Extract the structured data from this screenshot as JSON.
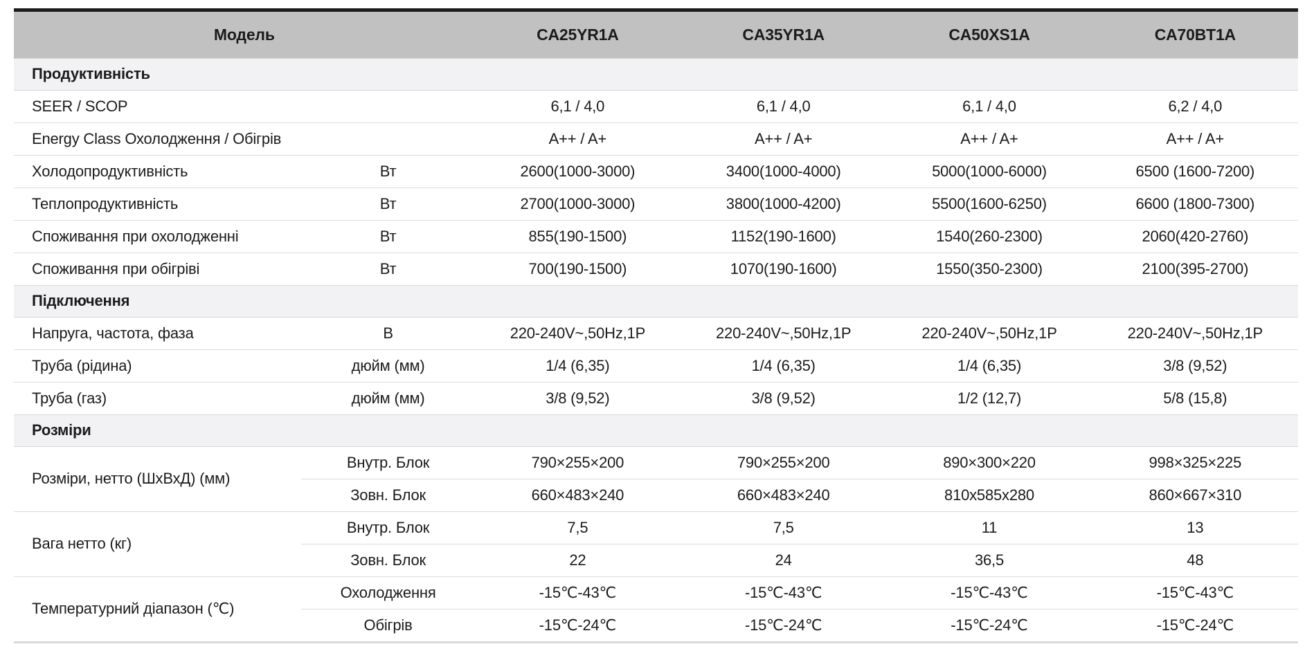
{
  "table": {
    "header": {
      "model_label": "Модель",
      "models": [
        "CA25YR1A",
        "CA35YR1A",
        "CA50XS1A",
        "CA70BT1A"
      ]
    },
    "sections": [
      {
        "title": "Продуктивність",
        "rows": [
          {
            "label": "SEER / SCOP",
            "unit": "",
            "values": [
              "6,1 / 4,0",
              "6,1 / 4,0",
              "6,1 / 4,0",
              "6,2 / 4,0"
            ]
          },
          {
            "label": "Energy Class Охолодження / Обігрів",
            "unit": "",
            "values": [
              "A++ / A+",
              "A++ / A+",
              "A++ / A+",
              "A++ / A+"
            ]
          },
          {
            "label": "Холодопродуктивність",
            "unit": "Вт",
            "values": [
              "2600(1000-3000)",
              "3400(1000-4000)",
              "5000(1000-6000)",
              "6500 (1600-7200)"
            ]
          },
          {
            "label": "Теплопродуктивність",
            "unit": "Вт",
            "values": [
              "2700(1000-3000)",
              "3800(1000-4200)",
              "5500(1600-6250)",
              "6600 (1800-7300)"
            ]
          },
          {
            "label": "Споживання при охолодженні",
            "unit": "Вт",
            "values": [
              "855(190-1500)",
              "1152(190-1600)",
              "1540(260-2300)",
              "2060(420-2760)"
            ]
          },
          {
            "label": "Споживання при обігріві",
            "unit": "Вт",
            "values": [
              "700(190-1500)",
              "1070(190-1600)",
              "1550(350-2300)",
              "2100(395-2700)"
            ]
          }
        ]
      },
      {
        "title": "Підключення",
        "rows": [
          {
            "label": "Напруга, частота, фаза",
            "unit": "В",
            "values": [
              "220-240V~,50Hz,1P",
              "220-240V~,50Hz,1P",
              "220-240V~,50Hz,1P",
              "220-240V~,50Hz,1P"
            ]
          },
          {
            "label": "Труба (рідина)",
            "unit": "дюйм (мм)",
            "values": [
              "1/4 (6,35)",
              "1/4 (6,35)",
              "1/4 (6,35)",
              "3/8 (9,52)"
            ]
          },
          {
            "label": "Труба (газ)",
            "unit": "дюйм (мм)",
            "values": [
              "3/8 (9,52)",
              "3/8 (9,52)",
              "1/2 (12,7)",
              "5/8 (15,8)"
            ]
          }
        ]
      },
      {
        "title": "Розміри",
        "groups": [
          {
            "label": "Розміри, нетто (ШхВхД) (мм)",
            "subrows": [
              {
                "sublabel": "Внутр. Блок",
                "values": [
                  "790×255×200",
                  "790×255×200",
                  "890×300×220",
                  "998×325×225"
                ]
              },
              {
                "sublabel": "Зовн. Блок",
                "values": [
                  "660×483×240",
                  "660×483×240",
                  "810x585x280",
                  "860×667×310"
                ]
              }
            ]
          },
          {
            "label": "Вага нетто (кг)",
            "subrows": [
              {
                "sublabel": "Внутр. Блок",
                "values": [
                  "7,5",
                  "7,5",
                  "11",
                  "13"
                ]
              },
              {
                "sublabel": "Зовн. Блок",
                "values": [
                  "22",
                  "24",
                  "36,5",
                  "48"
                ]
              }
            ]
          },
          {
            "label": "Температурний діапазон (℃)",
            "subrows": [
              {
                "sublabel": "Охолодження",
                "values": [
                  "-15℃-43℃",
                  "-15℃-43℃",
                  "-15℃-43℃",
                  "-15℃-43℃"
                ]
              },
              {
                "sublabel": "Обігрів",
                "values": [
                  "-15℃-24℃",
                  "-15℃-24℃",
                  "-15℃-24℃",
                  "-15℃-24℃"
                ]
              }
            ]
          }
        ]
      }
    ]
  }
}
